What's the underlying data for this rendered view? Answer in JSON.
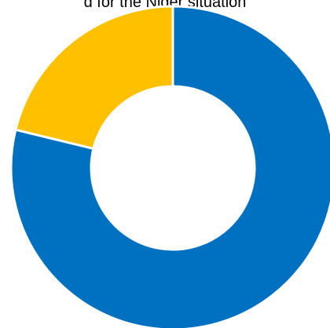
{
  "chart_data": {
    "type": "pie",
    "title": "d for the Niger situation",
    "categories": [
      "",
      ""
    ],
    "values": [
      78.8,
      21.2
    ],
    "colors": [
      "#0070c0",
      "#ffc000"
    ],
    "legend": "none"
  }
}
